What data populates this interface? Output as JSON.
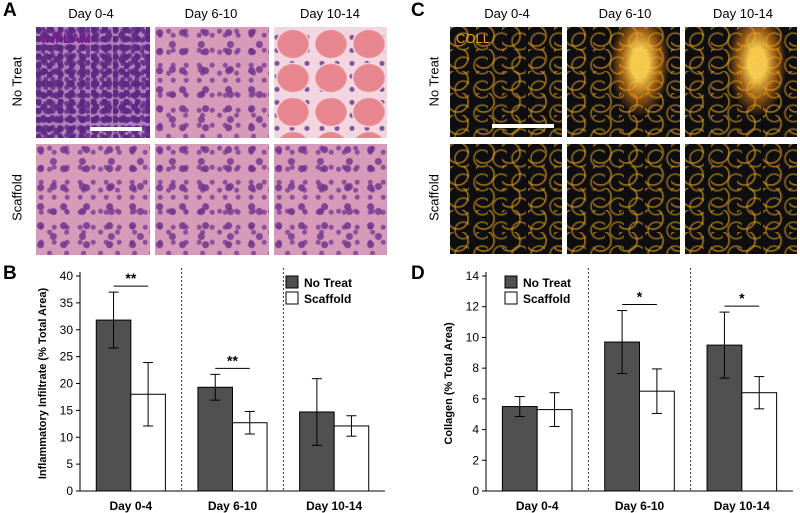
{
  "panels": {
    "A": {
      "letter": "A",
      "columns": [
        "Day 0-4",
        "Day 6-10",
        "Day 10-14"
      ],
      "rows": [
        "No Treat",
        "Scaffold"
      ],
      "stain_label": "INFLAM"
    },
    "B": {
      "letter": "B"
    },
    "C": {
      "letter": "C",
      "columns": [
        "Day 0-4",
        "Day 6-10",
        "Day 10-14"
      ],
      "rows": [
        "No Treat",
        "Scaffold"
      ],
      "stain_label": "COLL"
    },
    "D": {
      "letter": "D"
    }
  },
  "colors": {
    "no_treat": "#505050",
    "scaffold": "#ffffff",
    "inflam_label": "#7b1a8c",
    "coll_label": "#f0a020"
  },
  "chart_data": [
    {
      "type": "bar",
      "panel": "B",
      "categories": [
        "Day 0-4",
        "Day 6-10",
        "Day 10-14"
      ],
      "ylabel": "Inflammatory Infiltrate (% Total Area)",
      "ylim": [
        0,
        40
      ],
      "yticks": [
        0,
        5,
        10,
        15,
        20,
        25,
        30,
        35,
        40
      ],
      "series": [
        {
          "name": "No Treat",
          "values": [
            31.8,
            19.3,
            14.7
          ],
          "errors": [
            5.2,
            2.4,
            6.2
          ]
        },
        {
          "name": "Scaffold",
          "values": [
            18.0,
            12.7,
            12.1
          ],
          "errors": [
            5.9,
            2.1,
            1.9
          ]
        }
      ],
      "significance": [
        "**",
        "**",
        ""
      ],
      "legend": "top-right",
      "dividers": true
    },
    {
      "type": "bar",
      "panel": "D",
      "categories": [
        "Day 0-4",
        "Day 6-10",
        "Day 10-14"
      ],
      "ylabel": "Collagen (% Total Area)",
      "ylim": [
        0,
        14
      ],
      "yticks": [
        0,
        2,
        4,
        6,
        8,
        10,
        12,
        14
      ],
      "series": [
        {
          "name": "No Treat",
          "values": [
            5.5,
            9.7,
            9.5
          ],
          "errors": [
            0.65,
            2.05,
            2.15
          ]
        },
        {
          "name": "Scaffold",
          "values": [
            5.3,
            6.5,
            6.4
          ],
          "errors": [
            1.1,
            1.45,
            1.05
          ]
        }
      ],
      "significance": [
        "",
        "*",
        "*"
      ],
      "legend": "top-left",
      "dividers": true
    }
  ]
}
